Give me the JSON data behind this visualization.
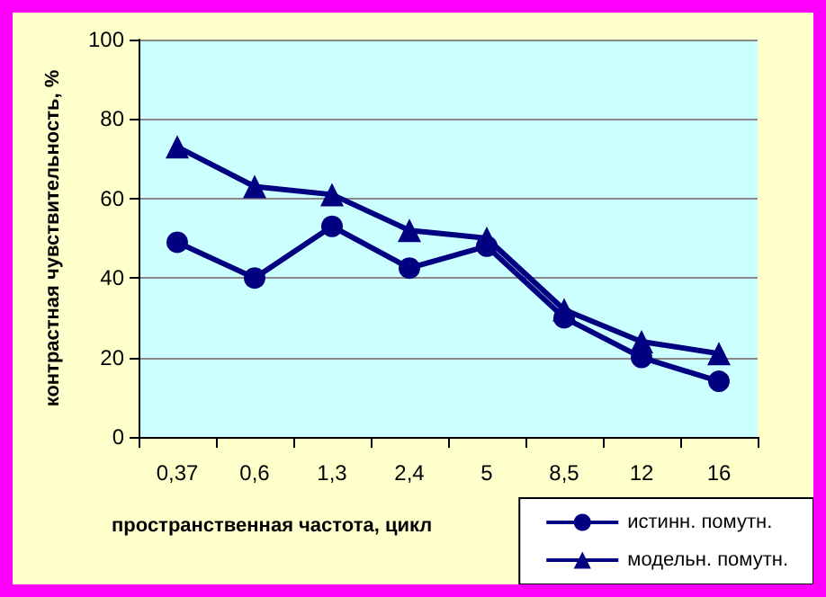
{
  "chart_data": {
    "type": "line",
    "xlabel": "пространственная частота, цикл",
    "ylabel": "контрастная чувствительность, %",
    "categories": [
      "0,37",
      "0,6",
      "1,3",
      "2,4",
      "5",
      "8,5",
      "12",
      "16"
    ],
    "series": [
      {
        "name": "истинн. помутн.",
        "color": "#000080",
        "marker": "circle",
        "values": [
          49,
          40,
          53,
          42.5,
          48,
          30,
          20,
          14
        ]
      },
      {
        "name": "модельн. помутн.",
        "color": "#000080",
        "marker": "triangle",
        "values": [
          73,
          63,
          61,
          52,
          50,
          32,
          24,
          21
        ]
      }
    ],
    "ylim": [
      0,
      100
    ],
    "yticks": [
      0,
      20,
      40,
      60,
      80,
      100
    ],
    "grid": "y",
    "legend": "bottom right",
    "line_style": "solid"
  }
}
